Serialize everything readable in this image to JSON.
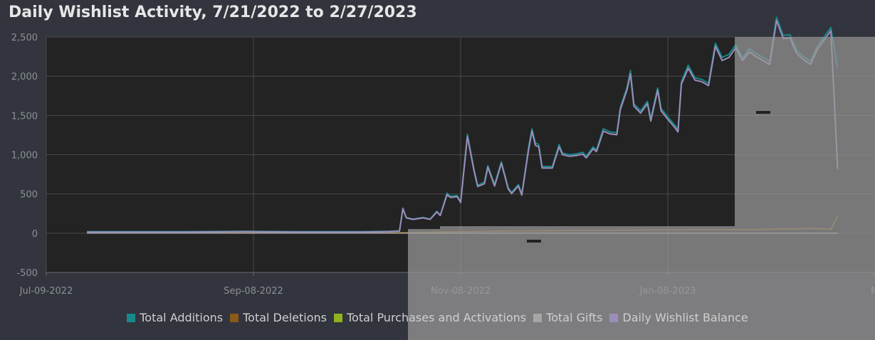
{
  "chart_data": {
    "type": "line",
    "title": "Daily Wishlist Activity, 7/21/2022 to 2/27/2023",
    "x_tick_labels": [
      "Jul-09-2022",
      "Sep-08-2022",
      "Nov-08-2022",
      "Jan-08-2023",
      "Mar"
    ],
    "y_tick_labels": [
      "2,500",
      "2,000",
      "1,500",
      "1,000",
      "500",
      "0",
      "-500"
    ],
    "y_ticks": [
      2500,
      2000,
      1500,
      1000,
      500,
      0,
      -500
    ],
    "ylim": [
      -500,
      2500
    ],
    "xlim": [
      "2022-07-09",
      "2023-03-10"
    ],
    "grid": true,
    "legend_position": "bottom",
    "legend": [
      {
        "name": "Total Additions",
        "color": "#16898a"
      },
      {
        "name": "Total Deletions",
        "color": "#8a5a1a"
      },
      {
        "name": "Total Purchases and Activations",
        "color": "#8fb31e"
      },
      {
        "name": "Total Gifts",
        "color": "#a6a6a6"
      },
      {
        "name": "Daily Wishlist Balance",
        "color": "#9c8cba"
      }
    ],
    "series": [
      {
        "name": "Total Additions",
        "color": "#16898a",
        "points": [
          [
            "2022-07-21",
            20
          ],
          [
            "2022-08-20",
            20
          ],
          [
            "2022-09-05",
            25
          ],
          [
            "2022-09-20",
            20
          ],
          [
            "2022-10-10",
            20
          ],
          [
            "2022-10-18",
            25
          ],
          [
            "2022-10-21",
            30
          ],
          [
            "2022-10-22",
            320
          ],
          [
            "2022-10-23",
            200
          ],
          [
            "2022-10-25",
            180
          ],
          [
            "2022-10-28",
            200
          ],
          [
            "2022-10-30",
            180
          ],
          [
            "2022-11-01",
            280
          ],
          [
            "2022-11-02",
            230
          ],
          [
            "2022-11-04",
            510
          ],
          [
            "2022-11-05",
            470
          ],
          [
            "2022-11-07",
            480
          ],
          [
            "2022-11-08",
            400
          ],
          [
            "2022-11-10",
            1260
          ],
          [
            "2022-11-12",
            800
          ],
          [
            "2022-11-13",
            610
          ],
          [
            "2022-11-15",
            650
          ],
          [
            "2022-11-16",
            860
          ],
          [
            "2022-11-18",
            620
          ],
          [
            "2022-11-20",
            910
          ],
          [
            "2022-11-22",
            580
          ],
          [
            "2022-11-23",
            520
          ],
          [
            "2022-11-25",
            620
          ],
          [
            "2022-11-26",
            500
          ],
          [
            "2022-11-28",
            1090
          ],
          [
            "2022-11-29",
            1330
          ],
          [
            "2022-11-30",
            1150
          ],
          [
            "2022-12-01",
            1130
          ],
          [
            "2022-12-02",
            850
          ],
          [
            "2022-12-05",
            850
          ],
          [
            "2022-12-07",
            1130
          ],
          [
            "2022-12-08",
            1020
          ],
          [
            "2022-12-10",
            1000
          ],
          [
            "2022-12-12",
            1010
          ],
          [
            "2022-12-14",
            1030
          ],
          [
            "2022-12-15",
            980
          ],
          [
            "2022-12-17",
            1100
          ],
          [
            "2022-12-18",
            1060
          ],
          [
            "2022-12-20",
            1330
          ],
          [
            "2022-12-22",
            1290
          ],
          [
            "2022-12-24",
            1280
          ],
          [
            "2022-12-25",
            1600
          ],
          [
            "2022-12-27",
            1860
          ],
          [
            "2022-12-28",
            2070
          ],
          [
            "2022-12-29",
            1650
          ],
          [
            "2022-12-31",
            1560
          ],
          [
            "2023-01-02",
            1680
          ],
          [
            "2023-01-03",
            1460
          ],
          [
            "2023-01-05",
            1850
          ],
          [
            "2023-01-06",
            1590
          ],
          [
            "2023-01-08",
            1480
          ],
          [
            "2023-01-10",
            1380
          ],
          [
            "2023-01-11",
            1320
          ],
          [
            "2023-01-12",
            1930
          ],
          [
            "2023-01-14",
            2140
          ],
          [
            "2023-01-16",
            1980
          ],
          [
            "2023-01-18",
            1960
          ],
          [
            "2023-01-20",
            1910
          ],
          [
            "2023-01-22",
            2420
          ],
          [
            "2023-01-24",
            2240
          ],
          [
            "2023-01-26",
            2280
          ],
          [
            "2023-01-28",
            2400
          ],
          [
            "2023-01-30",
            2230
          ],
          [
            "2023-02-01",
            2350
          ],
          [
            "2023-02-03",
            2290
          ],
          [
            "2023-02-05",
            2240
          ],
          [
            "2023-02-07",
            2190
          ],
          [
            "2023-02-09",
            2750
          ],
          [
            "2023-02-11",
            2520
          ],
          [
            "2023-02-13",
            2530
          ],
          [
            "2023-02-14",
            2420
          ],
          [
            "2023-02-15",
            2330
          ],
          [
            "2023-02-17",
            2250
          ],
          [
            "2023-02-19",
            2190
          ],
          [
            "2023-02-21",
            2380
          ],
          [
            "2023-02-23",
            2500
          ],
          [
            "2023-02-25",
            2620
          ],
          [
            "2023-02-27",
            2100
          ]
        ]
      },
      {
        "name": "Total Deletions",
        "color": "#8a5a1a",
        "points": [
          [
            "2022-07-21",
            5
          ],
          [
            "2022-10-21",
            8
          ],
          [
            "2022-11-10",
            20
          ],
          [
            "2022-12-01",
            30
          ],
          [
            "2023-01-01",
            40
          ],
          [
            "2023-02-01",
            45
          ],
          [
            "2023-02-20",
            60
          ],
          [
            "2023-02-25",
            50
          ],
          [
            "2023-02-27",
            220
          ]
        ]
      },
      {
        "name": "Total Purchases and Activations",
        "color": "#8fb31e",
        "points": [
          [
            "2022-07-21",
            0
          ],
          [
            "2023-02-27",
            0
          ]
        ]
      },
      {
        "name": "Total Gifts",
        "color": "#a6a6a6",
        "points": [
          [
            "2022-07-21",
            0
          ],
          [
            "2023-02-27",
            0
          ]
        ]
      },
      {
        "name": "Daily Wishlist Balance",
        "color": "#9c8cba",
        "points": [
          [
            "2022-07-21",
            15
          ],
          [
            "2022-08-20",
            15
          ],
          [
            "2022-09-05",
            20
          ],
          [
            "2022-09-20",
            15
          ],
          [
            "2022-10-10",
            15
          ],
          [
            "2022-10-18",
            20
          ],
          [
            "2022-10-21",
            25
          ],
          [
            "2022-10-22",
            310
          ],
          [
            "2022-10-23",
            195
          ],
          [
            "2022-10-25",
            175
          ],
          [
            "2022-10-28",
            195
          ],
          [
            "2022-10-30",
            175
          ],
          [
            "2022-11-01",
            270
          ],
          [
            "2022-11-02",
            225
          ],
          [
            "2022-11-04",
            490
          ],
          [
            "2022-11-05",
            455
          ],
          [
            "2022-11-07",
            465
          ],
          [
            "2022-11-08",
            390
          ],
          [
            "2022-11-10",
            1230
          ],
          [
            "2022-11-12",
            780
          ],
          [
            "2022-11-13",
            595
          ],
          [
            "2022-11-15",
            630
          ],
          [
            "2022-11-16",
            840
          ],
          [
            "2022-11-18",
            600
          ],
          [
            "2022-11-20",
            890
          ],
          [
            "2022-11-22",
            565
          ],
          [
            "2022-11-23",
            505
          ],
          [
            "2022-11-25",
            600
          ],
          [
            "2022-11-26",
            485
          ],
          [
            "2022-11-28",
            1060
          ],
          [
            "2022-11-29",
            1300
          ],
          [
            "2022-11-30",
            1120
          ],
          [
            "2022-12-01",
            1100
          ],
          [
            "2022-12-02",
            830
          ],
          [
            "2022-12-05",
            830
          ],
          [
            "2022-12-07",
            1100
          ],
          [
            "2022-12-08",
            1000
          ],
          [
            "2022-12-10",
            980
          ],
          [
            "2022-12-12",
            990
          ],
          [
            "2022-12-14",
            1005
          ],
          [
            "2022-12-15",
            960
          ],
          [
            "2022-12-17",
            1075
          ],
          [
            "2022-12-18",
            1040
          ],
          [
            "2022-12-20",
            1300
          ],
          [
            "2022-12-22",
            1265
          ],
          [
            "2022-12-24",
            1255
          ],
          [
            "2022-12-25",
            1570
          ],
          [
            "2022-12-27",
            1830
          ],
          [
            "2022-12-28",
            2030
          ],
          [
            "2022-12-29",
            1620
          ],
          [
            "2022-12-31",
            1530
          ],
          [
            "2023-01-02",
            1650
          ],
          [
            "2023-01-03",
            1430
          ],
          [
            "2023-01-05",
            1820
          ],
          [
            "2023-01-06",
            1560
          ],
          [
            "2023-01-08",
            1450
          ],
          [
            "2023-01-10",
            1350
          ],
          [
            "2023-01-11",
            1290
          ],
          [
            "2023-01-12",
            1900
          ],
          [
            "2023-01-14",
            2100
          ],
          [
            "2023-01-16",
            1950
          ],
          [
            "2023-01-18",
            1930
          ],
          [
            "2023-01-20",
            1880
          ],
          [
            "2023-01-22",
            2380
          ],
          [
            "2023-01-24",
            2200
          ],
          [
            "2023-01-26",
            2240
          ],
          [
            "2023-01-28",
            2360
          ],
          [
            "2023-01-30",
            2200
          ],
          [
            "2023-02-01",
            2310
          ],
          [
            "2023-02-03",
            2250
          ],
          [
            "2023-02-05",
            2200
          ],
          [
            "2023-02-07",
            2150
          ],
          [
            "2023-02-09",
            2710
          ],
          [
            "2023-02-11",
            2480
          ],
          [
            "2023-02-13",
            2490
          ],
          [
            "2023-02-14",
            2380
          ],
          [
            "2023-02-15",
            2290
          ],
          [
            "2023-02-17",
            2210
          ],
          [
            "2023-02-19",
            2150
          ],
          [
            "2023-02-21",
            2340
          ],
          [
            "2023-02-23",
            2460
          ],
          [
            "2023-02-25",
            2580
          ],
          [
            "2023-02-27",
            820
          ]
        ]
      }
    ]
  }
}
